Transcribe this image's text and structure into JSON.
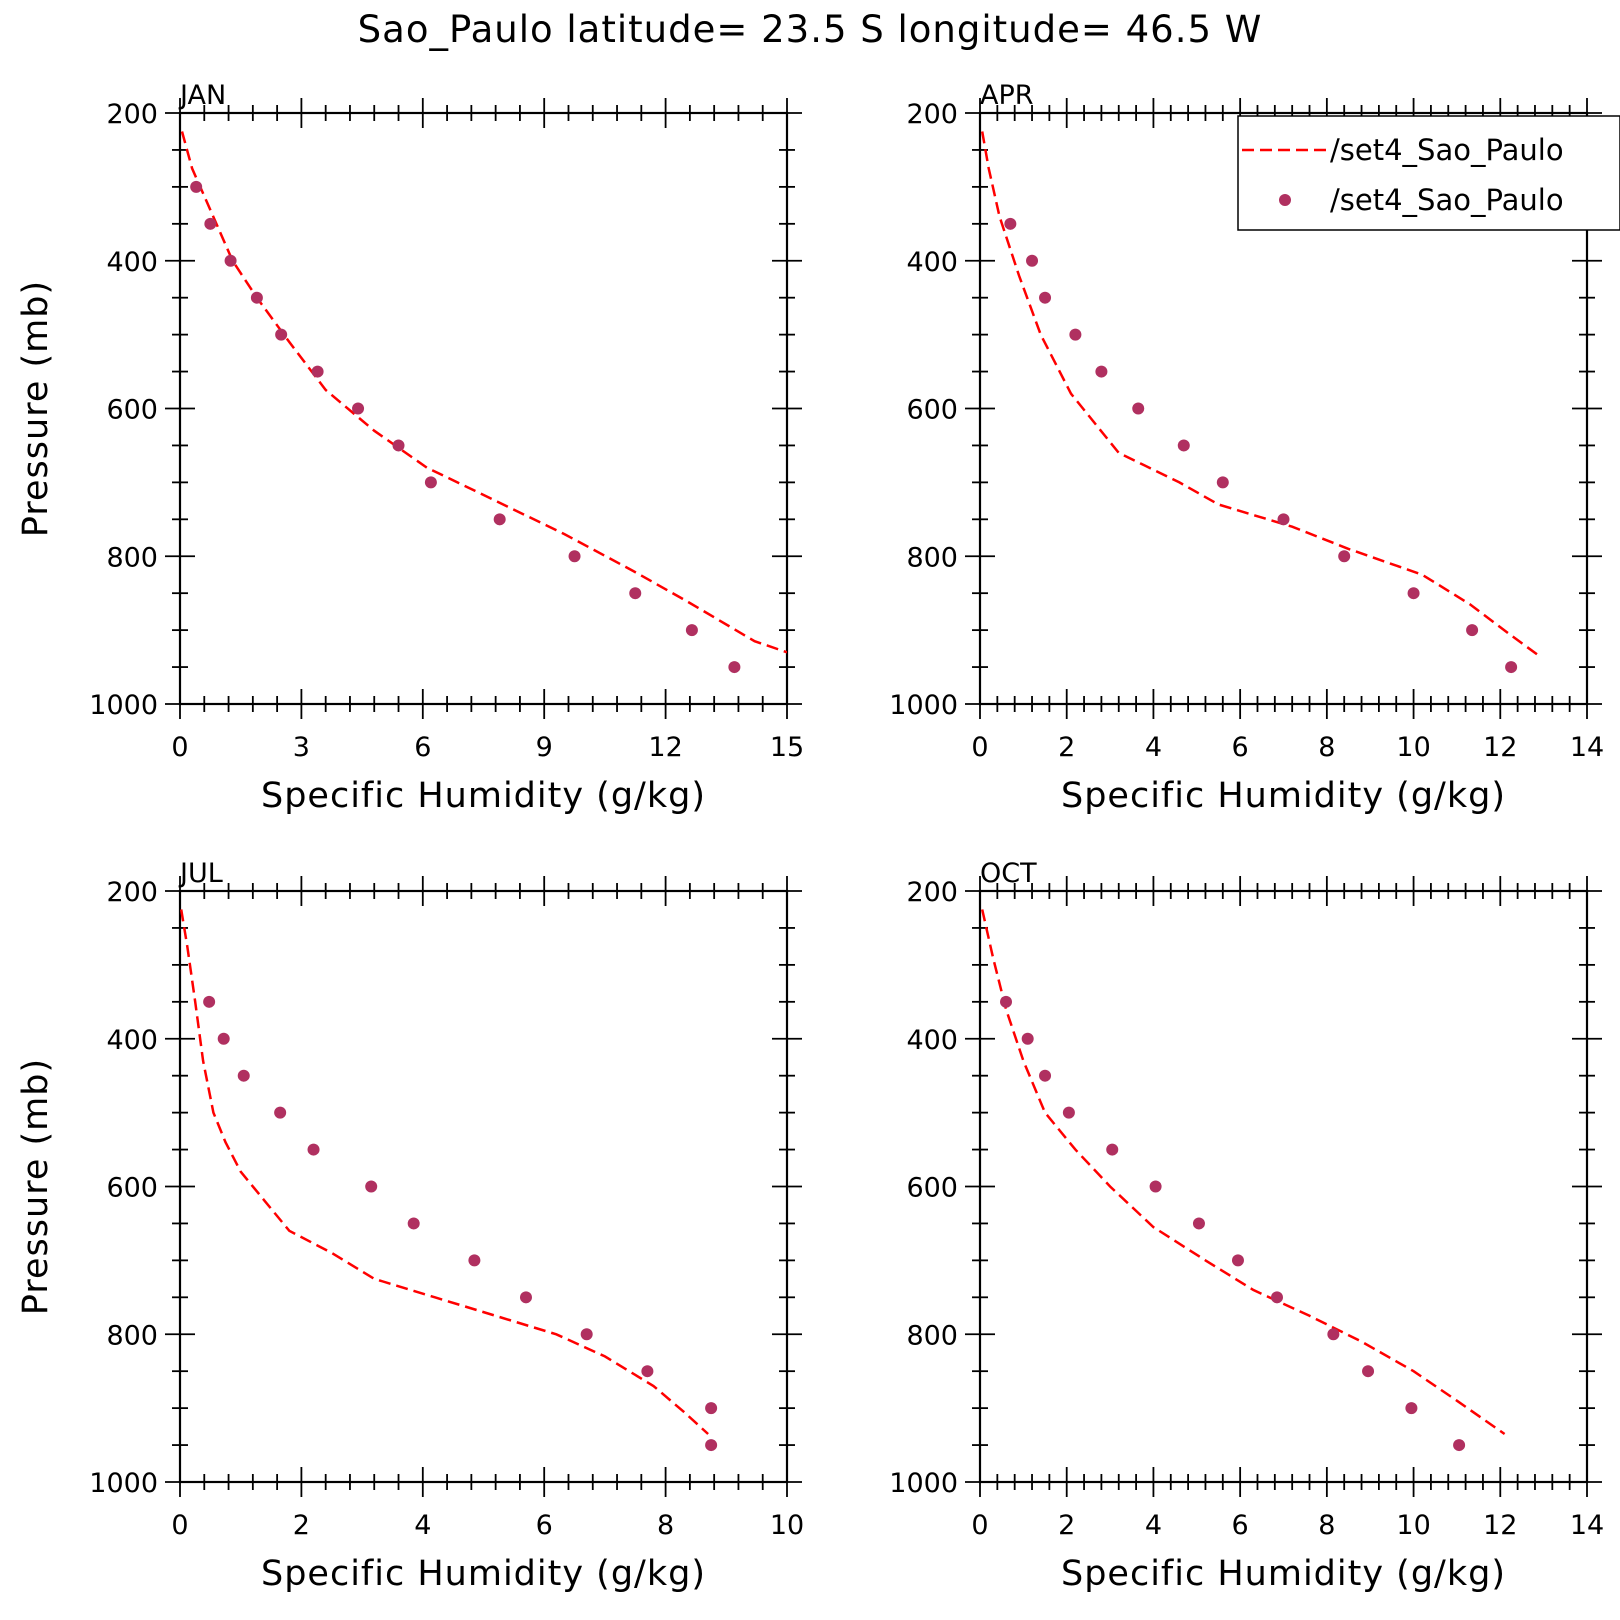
{
  "figure": {
    "title": "Sao_Paulo  latitude= 23.5 S longitude= 46.5 W"
  },
  "colors": {
    "model_line": "#ff0000",
    "obs_marker": "#b03060",
    "axes": "#000000"
  },
  "legend": {
    "placement": "top-right of APR panel (clipped)",
    "entries": [
      {
        "label": "/set4_Sao_Paulo",
        "style": "dashed-line"
      },
      {
        "label": "/set4_Sao_Paulo",
        "style": "dot"
      }
    ]
  },
  "chart_data": [
    {
      "type": "line",
      "panel": "JAN",
      "title": "JAN",
      "xlabel": "Specific Humidity (g/kg)",
      "ylabel": "Pressure (mb)",
      "xlim": [
        0,
        15
      ],
      "ylim": [
        200,
        1000
      ],
      "y_inverted": true,
      "grid": false,
      "xticks": [
        0,
        3,
        6,
        9,
        12,
        15
      ],
      "yticks": [
        200,
        400,
        600,
        800,
        1000
      ],
      "series": [
        {
          "name": "/set4_Sao_Paulo",
          "style": "dashed-line",
          "points": [
            [
              0.05,
              225
            ],
            [
              0.3,
              275
            ],
            [
              0.7,
              325
            ],
            [
              1.3,
              400
            ],
            [
              1.9,
              450
            ],
            [
              2.7,
              510
            ],
            [
              3.6,
              575
            ],
            [
              4.8,
              630
            ],
            [
              6.1,
              680
            ],
            [
              7.8,
              725
            ],
            [
              9.5,
              770
            ],
            [
              11.2,
              820
            ],
            [
              12.5,
              860
            ],
            [
              14.2,
              915
            ],
            [
              15.0,
              930
            ]
          ]
        },
        {
          "name": "/set4_Sao_Paulo",
          "style": "dots",
          "points": [
            [
              0.4,
              300
            ],
            [
              0.75,
              350
            ],
            [
              1.25,
              400
            ],
            [
              1.9,
              450
            ],
            [
              2.5,
              500
            ],
            [
              3.4,
              550
            ],
            [
              4.4,
              600
            ],
            [
              5.4,
              650
            ],
            [
              6.2,
              700
            ],
            [
              7.9,
              750
            ],
            [
              9.75,
              800
            ],
            [
              11.25,
              850
            ],
            [
              12.65,
              900
            ],
            [
              13.7,
              950
            ]
          ]
        }
      ]
    },
    {
      "type": "line",
      "panel": "APR",
      "title": "APR",
      "xlabel": "Specific Humidity (g/kg)",
      "ylabel": "",
      "xlim": [
        0,
        14
      ],
      "ylim": [
        200,
        1000
      ],
      "y_inverted": true,
      "grid": false,
      "xticks": [
        0,
        2,
        4,
        6,
        8,
        10,
        12,
        14
      ],
      "yticks": [
        200,
        400,
        600,
        800,
        1000
      ],
      "series": [
        {
          "name": "/set4_Sao_Paulo",
          "style": "dashed-line",
          "points": [
            [
              0.05,
              225
            ],
            [
              0.2,
              275
            ],
            [
              0.45,
              340
            ],
            [
              0.9,
              420
            ],
            [
              1.4,
              500
            ],
            [
              2.1,
              580
            ],
            [
              3.2,
              660
            ],
            [
              4.6,
              700
            ],
            [
              5.5,
              730
            ],
            [
              7.2,
              760
            ],
            [
              8.5,
              790
            ],
            [
              10.2,
              825
            ],
            [
              11.3,
              865
            ],
            [
              12.2,
              905
            ],
            [
              12.9,
              935
            ]
          ]
        },
        {
          "name": "/set4_Sao_Paulo",
          "style": "dots",
          "points": [
            [
              0.7,
              350
            ],
            [
              1.2,
              400
            ],
            [
              1.5,
              450
            ],
            [
              2.2,
              500
            ],
            [
              2.8,
              550
            ],
            [
              3.65,
              600
            ],
            [
              4.7,
              650
            ],
            [
              5.6,
              700
            ],
            [
              7.0,
              750
            ],
            [
              8.4,
              800
            ],
            [
              10.0,
              850
            ],
            [
              11.35,
              900
            ],
            [
              12.25,
              950
            ]
          ]
        }
      ]
    },
    {
      "type": "line",
      "panel": "JUL",
      "title": "JUL",
      "xlabel": "Specific Humidity (g/kg)",
      "ylabel": "Pressure (mb)",
      "xlim": [
        0,
        10
      ],
      "ylim": [
        200,
        1000
      ],
      "y_inverted": true,
      "grid": false,
      "xticks": [
        0,
        2,
        4,
        6,
        8,
        10
      ],
      "yticks": [
        200,
        400,
        600,
        800,
        1000
      ],
      "series": [
        {
          "name": "/set4_Sao_Paulo",
          "style": "dashed-line",
          "points": [
            [
              0.02,
              225
            ],
            [
              0.12,
              275
            ],
            [
              0.25,
              350
            ],
            [
              0.38,
              430
            ],
            [
              0.55,
              500
            ],
            [
              0.75,
              540
            ],
            [
              1.0,
              580
            ],
            [
              1.4,
              620
            ],
            [
              1.8,
              660
            ],
            [
              2.5,
              690
            ],
            [
              3.2,
              725
            ],
            [
              4.2,
              750
            ],
            [
              5.2,
              775
            ],
            [
              6.2,
              800
            ],
            [
              7.0,
              830
            ],
            [
              7.8,
              870
            ],
            [
              8.3,
              905
            ],
            [
              8.7,
              935
            ]
          ]
        },
        {
          "name": "/set4_Sao_Paulo",
          "style": "dots",
          "points": [
            [
              0.48,
              350
            ],
            [
              0.72,
              400
            ],
            [
              1.05,
              450
            ],
            [
              1.65,
              500
            ],
            [
              2.2,
              550
            ],
            [
              3.15,
              600
            ],
            [
              3.85,
              650
            ],
            [
              4.85,
              700
            ],
            [
              5.7,
              750
            ],
            [
              6.7,
              800
            ],
            [
              7.7,
              850
            ],
            [
              8.75,
              900
            ],
            [
              8.75,
              950
            ]
          ]
        }
      ]
    },
    {
      "type": "line",
      "panel": "OCT",
      "title": "OCT",
      "xlabel": "Specific Humidity (g/kg)",
      "ylabel": "",
      "xlim": [
        0,
        14
      ],
      "ylim": [
        200,
        1000
      ],
      "y_inverted": true,
      "grid": false,
      "xticks": [
        0,
        2,
        4,
        6,
        8,
        10,
        12,
        14
      ],
      "yticks": [
        200,
        400,
        600,
        800,
        1000
      ],
      "series": [
        {
          "name": "/set4_Sao_Paulo",
          "style": "dashed-line",
          "points": [
            [
              0.05,
              225
            ],
            [
              0.3,
              290
            ],
            [
              0.6,
              360
            ],
            [
              1.0,
              430
            ],
            [
              1.5,
              500
            ],
            [
              2.2,
              550
            ],
            [
              3.0,
              600
            ],
            [
              4.0,
              655
            ],
            [
              5.2,
              700
            ],
            [
              6.3,
              740
            ],
            [
              7.6,
              775
            ],
            [
              8.8,
              810
            ],
            [
              10.0,
              850
            ],
            [
              11.0,
              890
            ],
            [
              12.1,
              935
            ]
          ]
        },
        {
          "name": "/set4_Sao_Paulo",
          "style": "dots",
          "points": [
            [
              0.6,
              350
            ],
            [
              1.1,
              400
            ],
            [
              1.5,
              450
            ],
            [
              2.05,
              500
            ],
            [
              3.05,
              550
            ],
            [
              4.05,
              600
            ],
            [
              5.05,
              650
            ],
            [
              5.95,
              700
            ],
            [
              6.85,
              750
            ],
            [
              8.15,
              800
            ],
            [
              8.95,
              850
            ],
            [
              9.95,
              900
            ],
            [
              11.05,
              950
            ]
          ]
        }
      ]
    }
  ]
}
